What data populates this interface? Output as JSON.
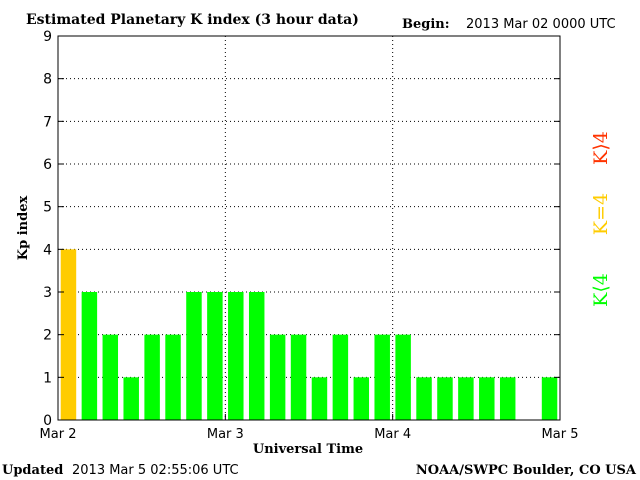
{
  "header": {
    "title": "Estimated Planetary K index (3 hour data)",
    "begin_label": "Begin:",
    "begin_value": "2013 Mar 02 0000 UTC"
  },
  "footer": {
    "updated_label": "Updated",
    "updated_value": "2013 Mar  5 02:55:06 UTC",
    "credit": "NOAA/SWPC Boulder, CO USA"
  },
  "legend": {
    "high": "K⟩4",
    "equal": "K=4",
    "low": "K⟨4"
  },
  "colors": {
    "low": "#00ff00",
    "equal": "#ffcc00",
    "high": "#ff3300",
    "grid": "#000000"
  },
  "chart_data": {
    "type": "bar",
    "title": "Estimated Planetary K index (3 hour data)",
    "xlabel": "Universal Time",
    "ylabel": "Kp index",
    "ylim": [
      0,
      9
    ],
    "yticks": [
      "0",
      "1",
      "2",
      "3",
      "4",
      "5",
      "6",
      "7",
      "8",
      "9"
    ],
    "xticks": [
      "Mar 2",
      "Mar 3",
      "Mar 4",
      "Mar 5"
    ],
    "grid": true,
    "bin_hours": 3,
    "values": [
      4,
      3,
      2,
      1,
      2,
      2,
      3,
      3,
      3,
      3,
      2,
      2,
      1,
      2,
      1,
      2,
      2,
      1,
      1,
      1,
      1,
      1,
      null,
      1
    ]
  }
}
